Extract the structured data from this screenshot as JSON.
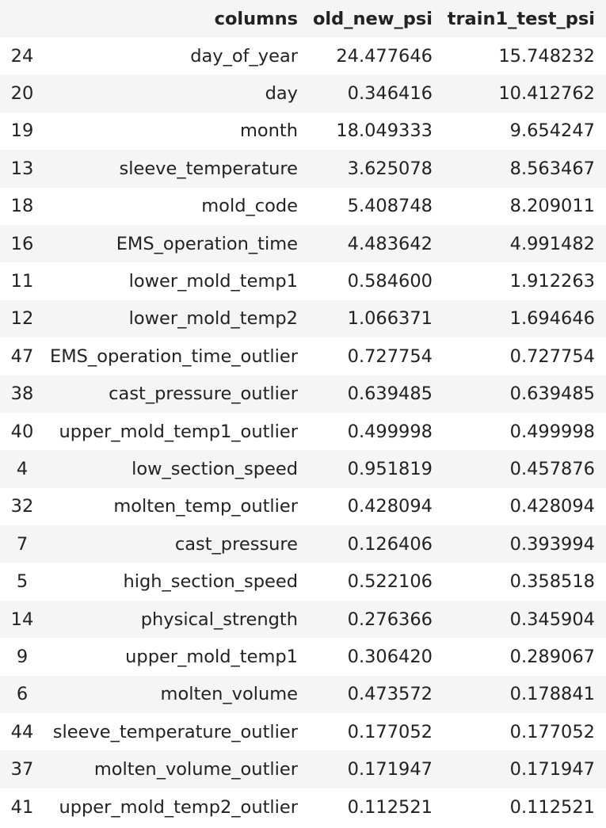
{
  "table": {
    "headers": {
      "index": "",
      "columns": "columns",
      "old_new_psi": "old_new_psi",
      "train1_test_psi": "train1_test_psi"
    },
    "rows": [
      {
        "index": "24",
        "columns": "day_of_year",
        "old_new_psi": "24.477646",
        "train1_test_psi": "15.748232"
      },
      {
        "index": "20",
        "columns": "day",
        "old_new_psi": "0.346416",
        "train1_test_psi": "10.412762"
      },
      {
        "index": "19",
        "columns": "month",
        "old_new_psi": "18.049333",
        "train1_test_psi": "9.654247"
      },
      {
        "index": "13",
        "columns": "sleeve_temperature",
        "old_new_psi": "3.625078",
        "train1_test_psi": "8.563467"
      },
      {
        "index": "18",
        "columns": "mold_code",
        "old_new_psi": "5.408748",
        "train1_test_psi": "8.209011"
      },
      {
        "index": "16",
        "columns": "EMS_operation_time",
        "old_new_psi": "4.483642",
        "train1_test_psi": "4.991482"
      },
      {
        "index": "11",
        "columns": "lower_mold_temp1",
        "old_new_psi": "0.584600",
        "train1_test_psi": "1.912263"
      },
      {
        "index": "12",
        "columns": "lower_mold_temp2",
        "old_new_psi": "1.066371",
        "train1_test_psi": "1.694646"
      },
      {
        "index": "47",
        "columns": "EMS_operation_time_outlier",
        "old_new_psi": "0.727754",
        "train1_test_psi": "0.727754"
      },
      {
        "index": "38",
        "columns": "cast_pressure_outlier",
        "old_new_psi": "0.639485",
        "train1_test_psi": "0.639485"
      },
      {
        "index": "40",
        "columns": "upper_mold_temp1_outlier",
        "old_new_psi": "0.499998",
        "train1_test_psi": "0.499998"
      },
      {
        "index": "4",
        "columns": "low_section_speed",
        "old_new_psi": "0.951819",
        "train1_test_psi": "0.457876"
      },
      {
        "index": "32",
        "columns": "molten_temp_outlier",
        "old_new_psi": "0.428094",
        "train1_test_psi": "0.428094"
      },
      {
        "index": "7",
        "columns": "cast_pressure",
        "old_new_psi": "0.126406",
        "train1_test_psi": "0.393994"
      },
      {
        "index": "5",
        "columns": "high_section_speed",
        "old_new_psi": "0.522106",
        "train1_test_psi": "0.358518"
      },
      {
        "index": "14",
        "columns": "physical_strength",
        "old_new_psi": "0.276366",
        "train1_test_psi": "0.345904"
      },
      {
        "index": "9",
        "columns": "upper_mold_temp1",
        "old_new_psi": "0.306420",
        "train1_test_psi": "0.289067"
      },
      {
        "index": "6",
        "columns": "molten_volume",
        "old_new_psi": "0.473572",
        "train1_test_psi": "0.178841"
      },
      {
        "index": "44",
        "columns": "sleeve_temperature_outlier",
        "old_new_psi": "0.177052",
        "train1_test_psi": "0.177052"
      },
      {
        "index": "37",
        "columns": "molten_volume_outlier",
        "old_new_psi": "0.171947",
        "train1_test_psi": "0.171947"
      },
      {
        "index": "41",
        "columns": "upper_mold_temp2_outlier",
        "old_new_psi": "0.112521",
        "train1_test_psi": "0.112521"
      }
    ]
  }
}
